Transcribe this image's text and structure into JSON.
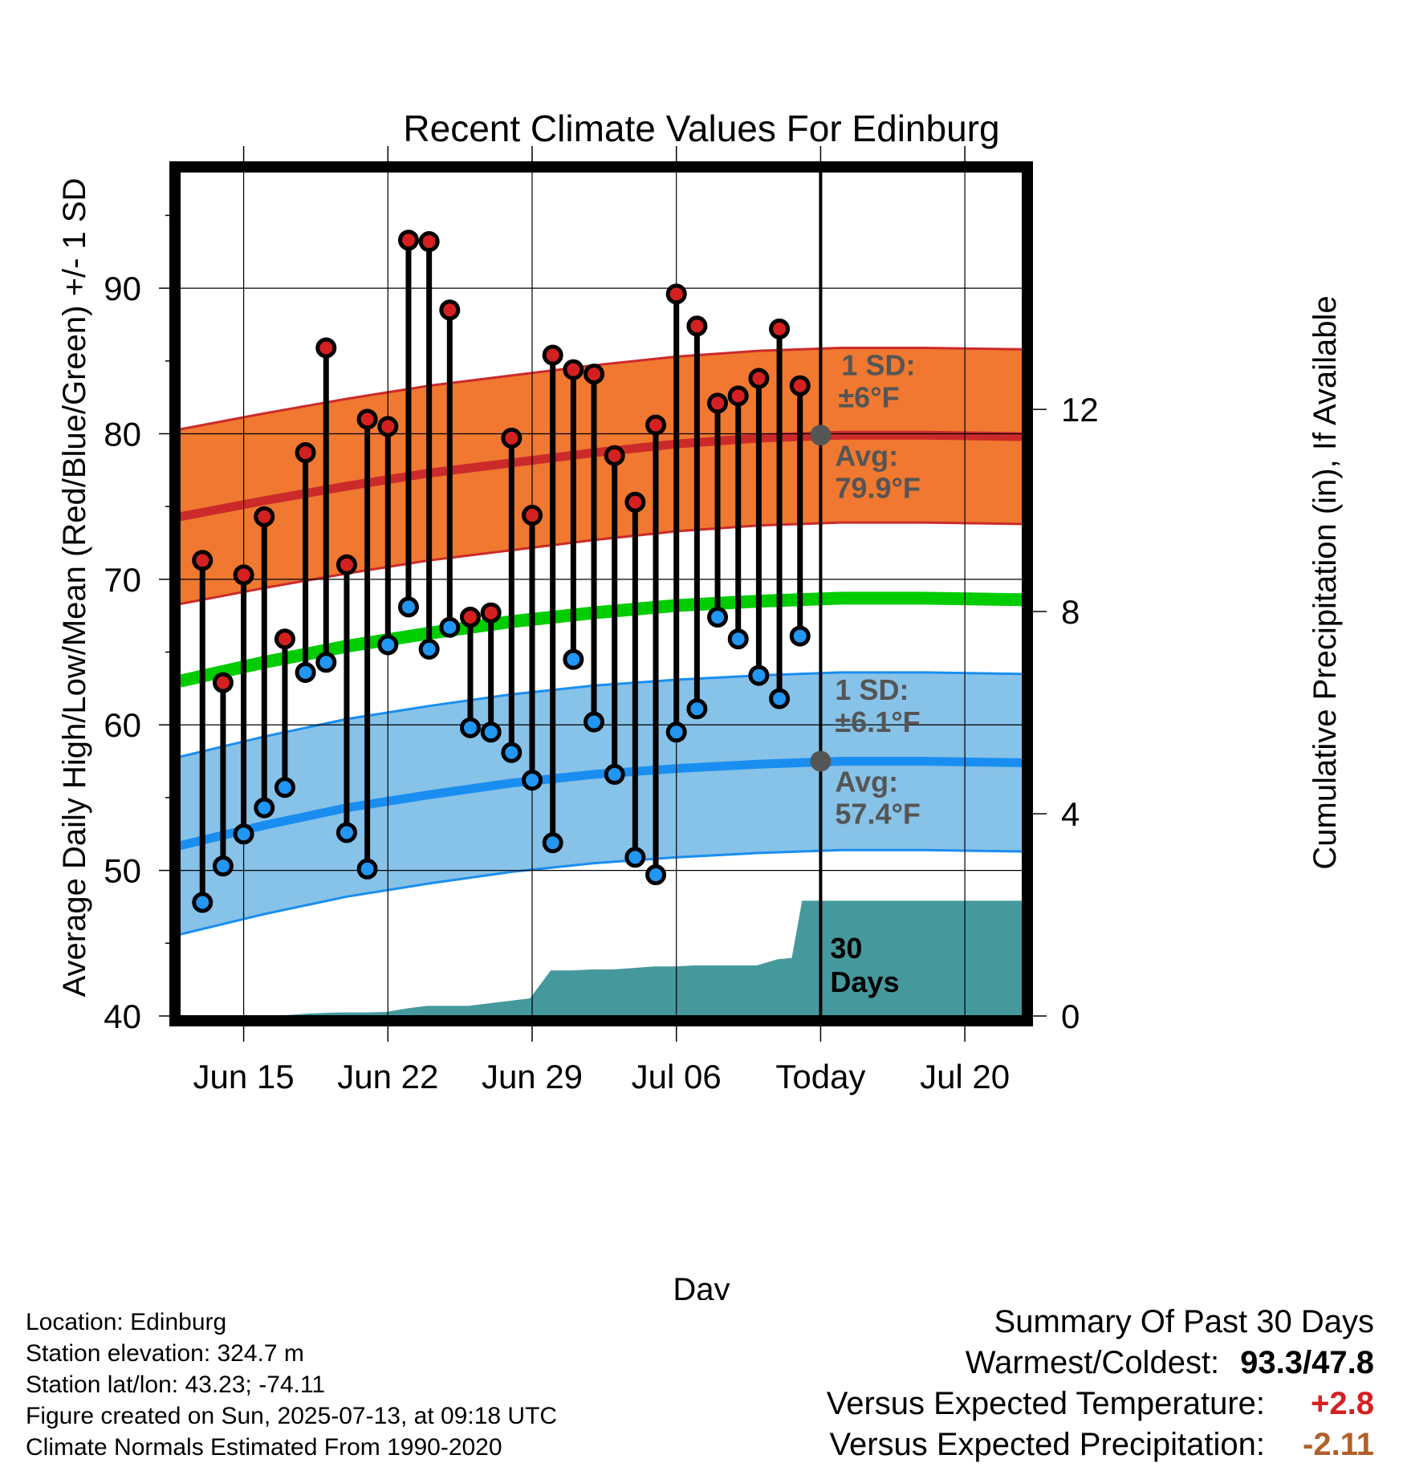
{
  "chart_data": {
    "type": "line",
    "title": "Recent Climate Values For Edinburg",
    "xlabel": "Day",
    "ylabel_left": "Average Daily High/Low/Mean (Red/Blue/Green) +/- 1 SD",
    "ylabel_right": "Cumulative Precipitation (in), If Available",
    "ylim_left": [
      40,
      98
    ],
    "ylim_right": [
      0,
      16.7
    ],
    "x_ticks": [
      "Jun 15",
      "Jun 22",
      "Jun 29",
      "Jul 06",
      "Today",
      "Jul 20"
    ],
    "x_tick_days": [
      15,
      22,
      29,
      36,
      43,
      50
    ],
    "xlim_days": [
      11.9,
      52.8
    ],
    "today_day": 43,
    "y_ticks_left": [
      40,
      50,
      60,
      70,
      80,
      90
    ],
    "y_ticks_right": [
      0,
      4,
      8,
      12
    ],
    "grid": true,
    "daily": {
      "days": [
        13,
        14,
        15,
        16,
        17,
        18,
        19,
        20,
        21,
        22,
        23,
        24,
        25,
        26,
        27,
        28,
        29,
        30,
        31,
        32,
        33,
        34,
        35,
        36,
        37,
        38,
        39,
        40,
        41,
        42
      ],
      "high": [
        71.3,
        62.9,
        70.3,
        74.3,
        65.9,
        78.7,
        85.9,
        71.0,
        81.0,
        80.5,
        93.3,
        93.2,
        88.5,
        67.4,
        67.7,
        79.7,
        74.4,
        85.4,
        84.4,
        84.1,
        78.5,
        75.3,
        80.6,
        89.6,
        87.4,
        82.1,
        82.6,
        83.8,
        87.2,
        83.3
      ],
      "low": [
        47.8,
        50.3,
        52.5,
        54.3,
        55.7,
        63.6,
        64.3,
        52.6,
        50.1,
        65.5,
        68.1,
        65.2,
        66.7,
        59.8,
        59.5,
        58.1,
        56.2,
        51.9,
        64.5,
        60.2,
        56.6,
        50.9,
        49.7,
        59.5,
        61.1,
        67.4,
        65.9,
        63.4,
        61.8,
        66.1
      ]
    },
    "normals": {
      "days": [
        11.9,
        16,
        20,
        24,
        28,
        32,
        36,
        40,
        44,
        48,
        52.8
      ],
      "high_mean": [
        74.3,
        75.4,
        76.4,
        77.3,
        78.0,
        78.7,
        79.3,
        79.7,
        79.9,
        79.9,
        79.8
      ],
      "low_mean": [
        51.7,
        53.1,
        54.3,
        55.2,
        56.0,
        56.6,
        57.0,
        57.3,
        57.5,
        57.5,
        57.4
      ],
      "mean": [
        63.0,
        64.3,
        65.4,
        66.3,
        67.1,
        67.7,
        68.2,
        68.5,
        68.7,
        68.7,
        68.6
      ],
      "high_sd": 6.0,
      "low_sd": 6.1
    },
    "precip_cumulative": {
      "days": [
        11.9,
        14.4,
        16.5,
        18.2,
        19.6,
        20.9,
        21.9,
        22.9,
        23.9,
        24.9,
        25.9,
        26.9,
        27.9,
        28.9,
        29.9,
        30.9,
        31.9,
        32.9,
        33.9,
        34.9,
        35.9,
        36.9,
        37.9,
        38.9,
        39.9,
        40.9,
        41.6,
        42.1,
        52.8
      ],
      "values": [
        0.0,
        0.0,
        0.0,
        0.05,
        0.07,
        0.07,
        0.08,
        0.15,
        0.2,
        0.2,
        0.2,
        0.25,
        0.3,
        0.35,
        0.9,
        0.9,
        0.92,
        0.92,
        0.95,
        0.98,
        0.98,
        1.0,
        1.0,
        1.0,
        1.0,
        1.12,
        1.15,
        2.28,
        2.28
      ]
    },
    "annotations": {
      "high_sd_title": "1 SD:",
      "high_sd_value": "±6°F",
      "high_avg_title": "Avg:",
      "high_avg_value": "79.9°F",
      "low_sd_title": "1 SD:",
      "low_sd_value": "±6.1°F",
      "low_avg_title": "Avg:",
      "low_avg_value": "57.4°F",
      "precip_line1": "30",
      "precip_line2": "Days"
    },
    "colors": {
      "high_band": "#f07830",
      "high_line": "#cc2a2a",
      "low_band": "#87c2e8",
      "low_line": "#1a8ef0",
      "mean_line": "#00cc00",
      "precip": "#45999d",
      "high_marker": "#d42020",
      "low_marker": "#2196f3",
      "today_marker": "#555555"
    }
  },
  "footer_left": {
    "location": "Location: Edinburg",
    "elevation": "Station elevation: 324.7 m",
    "latlon": "Station lat/lon: 43.23; -74.11",
    "created": "Figure created on Sun, 2025-07-13, at 09:18 UTC",
    "normals": "Climate Normals Estimated From 1990-2020"
  },
  "summary": {
    "title": "Summary Of Past 30 Days",
    "warmest_label": "Warmest/Coldest:",
    "warmest_value": "93.3/47.8",
    "temp_label": "Versus Expected Temperature:",
    "temp_value": "+2.8",
    "temp_color": "#d42020",
    "precip_label": "Versus Expected Precipitation:",
    "precip_value": "-2.11",
    "precip_color": "#b0602a"
  }
}
